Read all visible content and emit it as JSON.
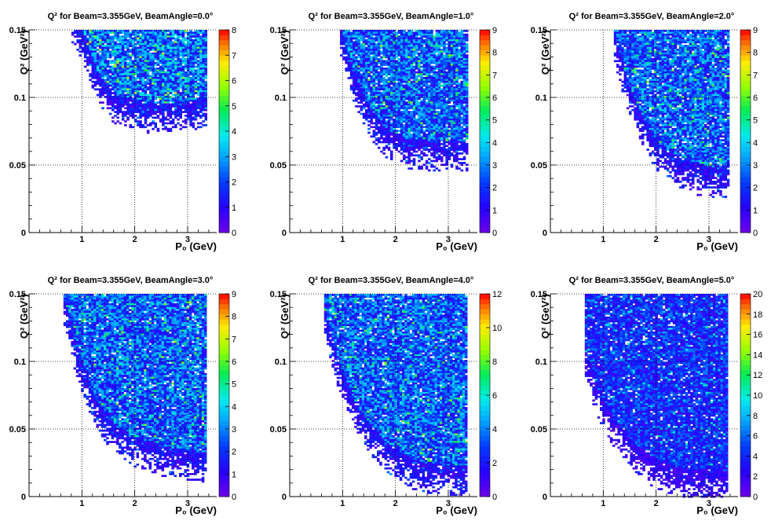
{
  "chart_data": [
    {
      "type": "heatmap",
      "title": "Q² for Beam=3.355GeV, BeamAngle=0.0°",
      "xlabel": "P₀ (GeV)",
      "ylabel": "Q² (GeV²)",
      "xlim": [
        0,
        3.55
      ],
      "ylim": [
        0,
        0.15
      ],
      "xticks": [
        "1",
        "2",
        "3"
      ],
      "yticks": [
        "0",
        "0.05",
        "0.1",
        "0.15"
      ],
      "zlim": [
        0,
        8
      ],
      "zticks": [
        "0",
        "1",
        "2",
        "3",
        "4",
        "5",
        "6",
        "7",
        "8"
      ],
      "grid": true,
      "region": {
        "x": [
          0.8,
          3.35
        ],
        "boundary": [
          [
            0.8,
            0.145
          ],
          [
            1.0,
            0.13
          ],
          [
            1.3,
            0.1
          ],
          [
            1.6,
            0.085
          ],
          [
            2.2,
            0.078
          ],
          [
            2.8,
            0.079
          ],
          [
            3.35,
            0.083
          ]
        ]
      },
      "typical_value": 3
    },
    {
      "type": "heatmap",
      "title": "Q² for Beam=3.355GeV, BeamAngle=1.0°",
      "xlabel": "P₀ (GeV)",
      "ylabel": "Q² (GeV²)",
      "xlim": [
        0,
        3.55
      ],
      "ylim": [
        0,
        0.15
      ],
      "xticks": [
        "1",
        "2",
        "3"
      ],
      "yticks": [
        "0",
        "0.05",
        "0.1",
        "0.15"
      ],
      "zlim": [
        0,
        9
      ],
      "zticks": [
        "0",
        "1",
        "2",
        "3",
        "4",
        "5",
        "6",
        "7",
        "8",
        "9"
      ],
      "grid": true,
      "region": {
        "x": [
          0.95,
          3.35
        ],
        "boundary": [
          [
            0.95,
            0.135
          ],
          [
            1.2,
            0.1
          ],
          [
            1.5,
            0.075
          ],
          [
            1.8,
            0.06
          ],
          [
            2.2,
            0.052
          ],
          [
            2.8,
            0.05
          ],
          [
            3.35,
            0.05
          ]
        ]
      },
      "typical_value": 3
    },
    {
      "type": "heatmap",
      "title": "Q² for Beam=3.355GeV, BeamAngle=2.0°",
      "xlabel": "P₀ (GeV)",
      "ylabel": "Q² (GeV²)",
      "xlim": [
        0,
        3.55
      ],
      "ylim": [
        0,
        0.15
      ],
      "xticks": [
        "1",
        "2",
        "3"
      ],
      "yticks": [
        "0",
        "0.05",
        "0.1",
        "0.15"
      ],
      "zlim": [
        0,
        9
      ],
      "zticks": [
        "0",
        "1",
        "2",
        "3",
        "4",
        "5",
        "6",
        "7",
        "8",
        "9"
      ],
      "grid": true,
      "region": {
        "x": [
          1.2,
          3.35
        ],
        "boundary": [
          [
            1.2,
            0.13
          ],
          [
            1.4,
            0.1
          ],
          [
            1.7,
            0.07
          ],
          [
            2.0,
            0.05
          ],
          [
            2.3,
            0.04
          ],
          [
            2.8,
            0.032
          ],
          [
            3.35,
            0.03
          ]
        ]
      },
      "typical_value": 3
    },
    {
      "type": "heatmap",
      "title": "Q² for Beam=3.355GeV, BeamAngle=3.0°",
      "xlabel": "P₀ (GeV)",
      "ylabel": "Q² (GeV²)",
      "xlim": [
        0,
        3.55
      ],
      "ylim": [
        0,
        0.15
      ],
      "xticks": [
        "1",
        "2",
        "3"
      ],
      "yticks": [
        "0",
        "0.05",
        "0.1",
        "0.15"
      ],
      "zlim": [
        0,
        9
      ],
      "zticks": [
        "0",
        "1",
        "2",
        "3",
        "4",
        "5",
        "6",
        "7",
        "8",
        "9"
      ],
      "grid": true,
      "region": {
        "x": [
          0.65,
          3.35
        ],
        "boundary": [
          [
            0.65,
            0.13
          ],
          [
            0.9,
            0.09
          ],
          [
            1.2,
            0.06
          ],
          [
            1.5,
            0.04
          ],
          [
            1.9,
            0.028
          ],
          [
            2.5,
            0.02
          ],
          [
            3.35,
            0.015
          ]
        ]
      },
      "typical_value": 3
    },
    {
      "type": "heatmap",
      "title": "Q² for Beam=3.355GeV, BeamAngle=4.0°",
      "xlabel": "P₀ (GeV)",
      "ylabel": "Q² (GeV²)",
      "xlim": [
        0,
        3.55
      ],
      "ylim": [
        0,
        0.15
      ],
      "xticks": [
        "1",
        "2",
        "3"
      ],
      "yticks": [
        "0",
        "0.05",
        "0.1",
        "0.15"
      ],
      "zlim": [
        0,
        12
      ],
      "zticks": [
        "0",
        "2",
        "4",
        "6",
        "8",
        "10",
        "12"
      ],
      "grid": true,
      "region": {
        "x": [
          0.65,
          3.35
        ],
        "boundary": [
          [
            0.65,
            0.12
          ],
          [
            0.9,
            0.085
          ],
          [
            1.2,
            0.055
          ],
          [
            1.5,
            0.035
          ],
          [
            1.9,
            0.02
          ],
          [
            2.4,
            0.008
          ],
          [
            3.35,
            0.005
          ]
        ]
      },
      "typical_value": 4
    },
    {
      "type": "heatmap",
      "title": "Q² for Beam=3.355GeV, BeamAngle=5.0°",
      "xlabel": "P₀ (GeV)",
      "ylabel": "Q² (GeV²)",
      "xlim": [
        0,
        3.55
      ],
      "ylim": [
        0,
        0.15
      ],
      "xticks": [
        "1",
        "2",
        "3"
      ],
      "yticks": [
        "0",
        "0.05",
        "0.1",
        "0.15"
      ],
      "zlim": [
        0,
        20
      ],
      "zticks": [
        "0",
        "2",
        "4",
        "6",
        "8",
        "10",
        "12",
        "14",
        "16",
        "18",
        "20"
      ],
      "grid": true,
      "region": {
        "x": [
          0.65,
          3.35
        ],
        "boundary": [
          [
            0.65,
            0.09
          ],
          [
            0.9,
            0.06
          ],
          [
            1.2,
            0.04
          ],
          [
            1.5,
            0.025
          ],
          [
            1.9,
            0.012
          ],
          [
            2.4,
            0.004
          ],
          [
            3.35,
            0.002
          ]
        ]
      },
      "typical_value": 5
    }
  ]
}
